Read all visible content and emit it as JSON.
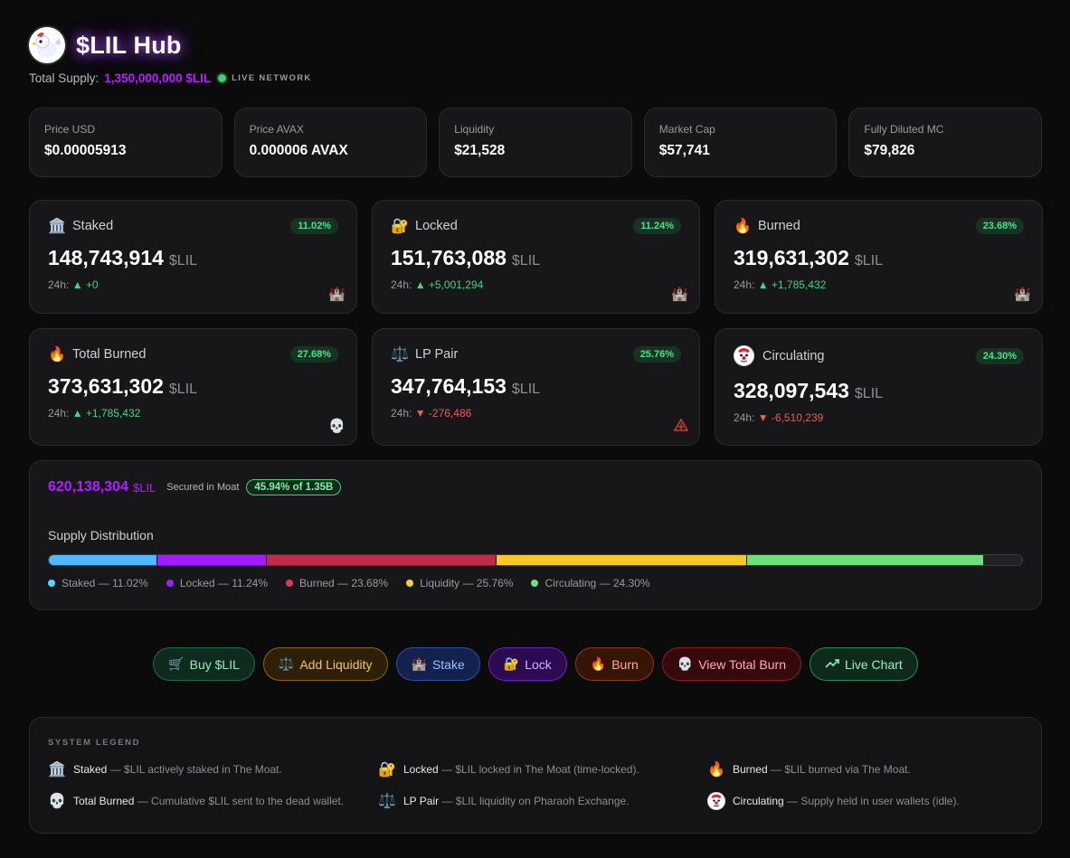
{
  "header": {
    "title": "$LIL Hub",
    "supply_label": "Total Supply:",
    "supply_value": "1,350,000,000 $LIL",
    "live_label": "LIVE NETWORK"
  },
  "stats": [
    {
      "label": "Price USD",
      "value": "$0.00005913"
    },
    {
      "label": "Price AVAX",
      "value": "0.000006 AVAX"
    },
    {
      "label": "Liquidity",
      "value": "$21,528"
    },
    {
      "label": "Market Cap",
      "value": "$57,741"
    },
    {
      "label": "Fully Diluted MC",
      "value": "$79,826"
    }
  ],
  "cards": [
    {
      "icon": "🏛️",
      "name": "Staked",
      "pct": "11.02%",
      "value": "148,743,914",
      "unit": "$LIL",
      "h_label": "24h:",
      "delta": "▲ +0",
      "corner": "🏰"
    },
    {
      "icon": "🔐",
      "name": "Locked",
      "pct": "11.24%",
      "value": "151,763,088",
      "unit": "$LIL",
      "h_label": "24h:",
      "delta": "▲ +5,001,294",
      "corner": "🏰"
    },
    {
      "icon": "🔥",
      "name": "Burned",
      "pct": "23.68%",
      "value": "319,631,302",
      "unit": "$LIL",
      "h_label": "24h:",
      "delta": "▲ +1,785,432",
      "corner": "🏰"
    },
    {
      "icon": "🔥",
      "name": "Total Burned",
      "pct": "27.68%",
      "value": "373,631,302",
      "unit": "$LIL",
      "h_label": "24h:",
      "delta": "▲ +1,785,432",
      "corner": "💀"
    },
    {
      "icon": "⚖️",
      "name": "LP Pair",
      "pct": "25.76%",
      "value": "347,764,153",
      "unit": "$LIL",
      "h_label": "24h:",
      "delta": "▼ -276,486",
      "corner": "🔺"
    },
    {
      "icon": "clown",
      "name": "Circulating",
      "pct": "24.30%",
      "value": "328,097,543",
      "unit": "$LIL",
      "h_label": "24h:",
      "delta": "▼ -6,510,239",
      "corner": ""
    }
  ],
  "moat": {
    "value": "620,138,304",
    "unit": "$LIL",
    "text": "Secured in Moat",
    "pill": "45.94% of 1.35B",
    "dist_title": "Supply Distribution",
    "segments": [
      {
        "label": "Staked — 11.02%",
        "pct": 11.02,
        "color": "#4fb8ff"
      },
      {
        "label": "Locked — 11.24%",
        "pct": 11.24,
        "color": "#a21cff"
      },
      {
        "label": "Burned — 23.68%",
        "pct": 23.68,
        "color": "#c02c48"
      },
      {
        "label": "Liquidity — 25.76%",
        "pct": 25.76,
        "color": "#f5c928"
      },
      {
        "label": "Circulating — 24.30%",
        "pct": 24.3,
        "color": "#6de07c"
      }
    ]
  },
  "buttons": [
    {
      "icon": "🛒",
      "label": "Buy $LIL"
    },
    {
      "icon": "⚖️",
      "label": "Add Liquidity"
    },
    {
      "icon": "🏰",
      "label": "Stake"
    },
    {
      "icon": "🔐",
      "label": "Lock"
    },
    {
      "icon": "🔥",
      "label": "Burn"
    },
    {
      "icon": "💀",
      "label": "View Total Burn"
    },
    {
      "icon": "↗",
      "label": "Live Chart"
    }
  ],
  "legend": {
    "title": "SYSTEM LEGEND",
    "items": [
      {
        "icon": "🏛️",
        "term": "Staked",
        "desc": " — $LIL actively staked in The Moat."
      },
      {
        "icon": "🔐",
        "term": "Locked",
        "desc": " — $LIL locked in The Moat (time-locked)."
      },
      {
        "icon": "🔥",
        "term": "Burned",
        "desc": " — $LIL burned via The Moat."
      },
      {
        "icon": "💀",
        "term": "Total Burned",
        "desc": " — Cumulative $LIL sent to the dead wallet."
      },
      {
        "icon": "⚖️",
        "term": "LP Pair",
        "desc": " — $LIL liquidity on Pharaoh Exchange."
      },
      {
        "icon": "clown",
        "term": "Circulating",
        "desc": " — Supply held in user wallets (idle)."
      }
    ]
  }
}
